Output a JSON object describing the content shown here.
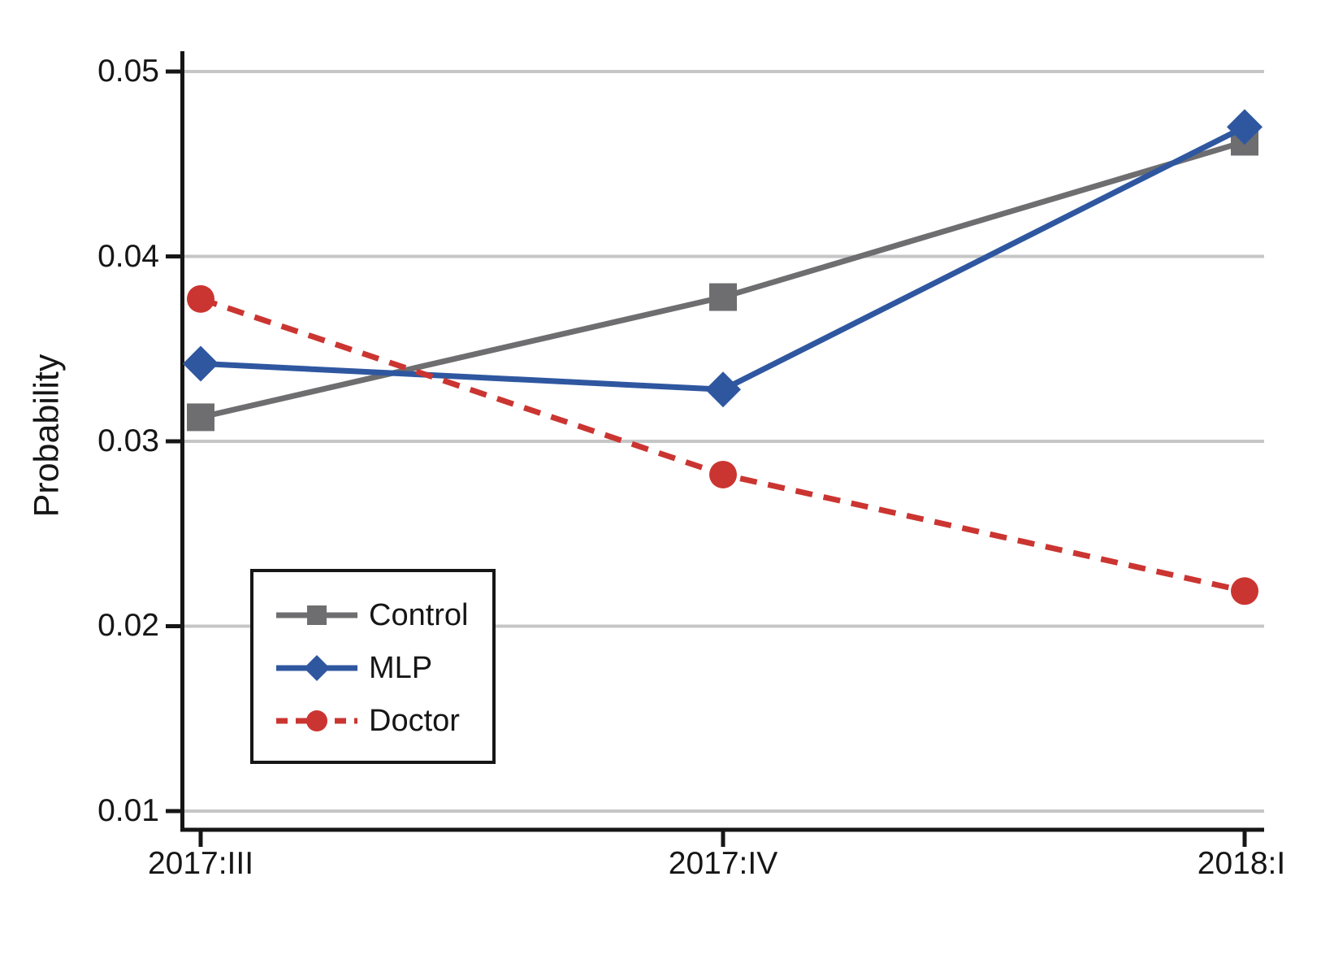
{
  "chart_data": {
    "type": "line",
    "title": "",
    "xlabel": "",
    "ylabel": "Probability",
    "categories": [
      "2017:III",
      "2017:IV",
      "2018:I"
    ],
    "yticks": [
      0.05,
      0.04,
      0.03,
      0.02,
      0.01
    ],
    "ytick_labels": [
      "0.05",
      "0.04",
      "0.03",
      "0.02",
      "0.01"
    ],
    "ylim": [
      0.01,
      0.05
    ],
    "grid": true,
    "legend_position": "lower-left-box",
    "series": [
      {
        "name": "Control",
        "marker": "square",
        "dash": "solid",
        "color": "#6e6e70",
        "values": [
          0.0313,
          0.0378,
          0.0462
        ]
      },
      {
        "name": "MLP",
        "marker": "diamond",
        "dash": "solid",
        "color": "#2f57a0",
        "values": [
          0.0342,
          0.0328,
          0.047
        ]
      },
      {
        "name": "Doctor",
        "marker": "circle",
        "dash": "dashed",
        "color": "#cb3531",
        "values": [
          0.0377,
          0.0282,
          0.0219
        ]
      }
    ],
    "colors": {
      "grid": "#c6c6c6",
      "axis": "#161616",
      "background": "#ffffff"
    }
  }
}
